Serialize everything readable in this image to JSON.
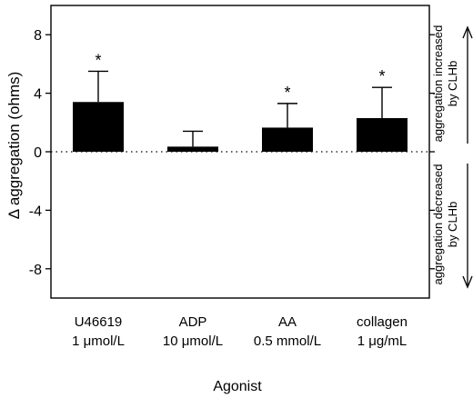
{
  "chart_data": {
    "type": "bar",
    "categories": [
      {
        "line1": "U46619",
        "line2": "1 μmol/L"
      },
      {
        "line1": "ADP",
        "line2": "10 μmol/L"
      },
      {
        "line1": "AA",
        "line2": "0.5 mmol/L"
      },
      {
        "line1": "collagen",
        "line2": "1 μg/mL"
      }
    ],
    "values": [
      3.4,
      0.35,
      1.65,
      2.3
    ],
    "errors": [
      2.1,
      1.05,
      1.65,
      2.1
    ],
    "significant": [
      true,
      false,
      true,
      true
    ],
    "significance_marker": "*",
    "xlabel": "Agonist",
    "ylabel": "Δ aggregation (ohms)",
    "ylim": [
      -10,
      10
    ],
    "yticks": [
      -8,
      -4,
      0,
      4,
      8
    ],
    "zero_line": "dotted",
    "bar_color": "#000000",
    "right_annotations": {
      "upper": {
        "line1": "aggregation increased",
        "line2": "by CLHb"
      },
      "lower": {
        "line1": "aggregation decreased",
        "line2": "by CLHb"
      }
    }
  }
}
